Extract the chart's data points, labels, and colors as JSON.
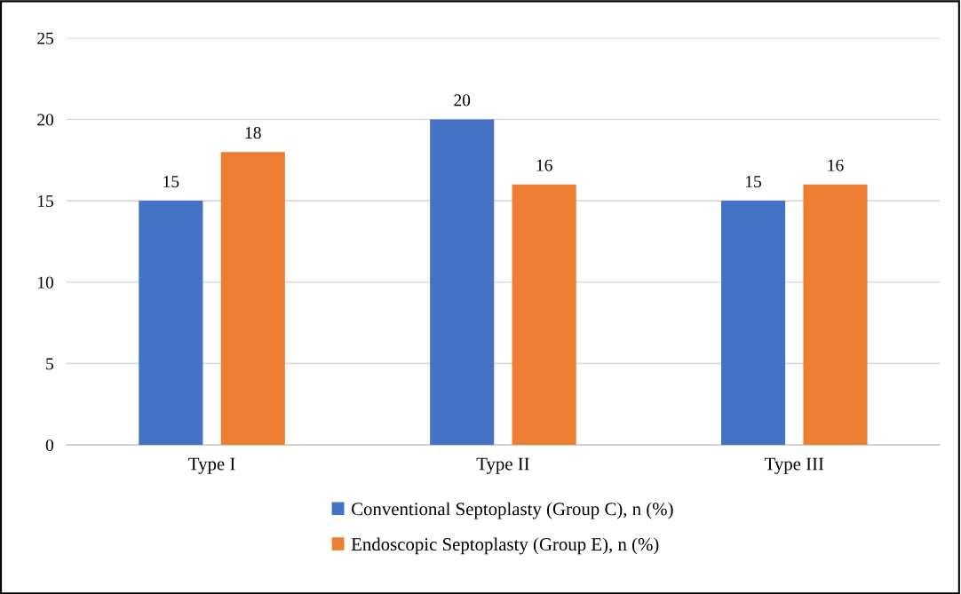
{
  "chart_data": {
    "type": "bar",
    "categories": [
      "Type I",
      "Type II",
      "Type III"
    ],
    "series": [
      {
        "name": "Conventional Septoplasty (Group C), n (%)",
        "color": "#4472c4",
        "values": [
          15,
          20,
          15
        ]
      },
      {
        "name": "Endoscopic Septoplasty (Group E), n (%)",
        "color": "#ed7d31",
        "values": [
          18,
          16,
          16
        ]
      }
    ],
    "ylim": [
      0,
      25
    ],
    "yticks": [
      0,
      5,
      10,
      15,
      20,
      25
    ],
    "grid": "y",
    "legend": "bottom",
    "data_labels": true
  }
}
